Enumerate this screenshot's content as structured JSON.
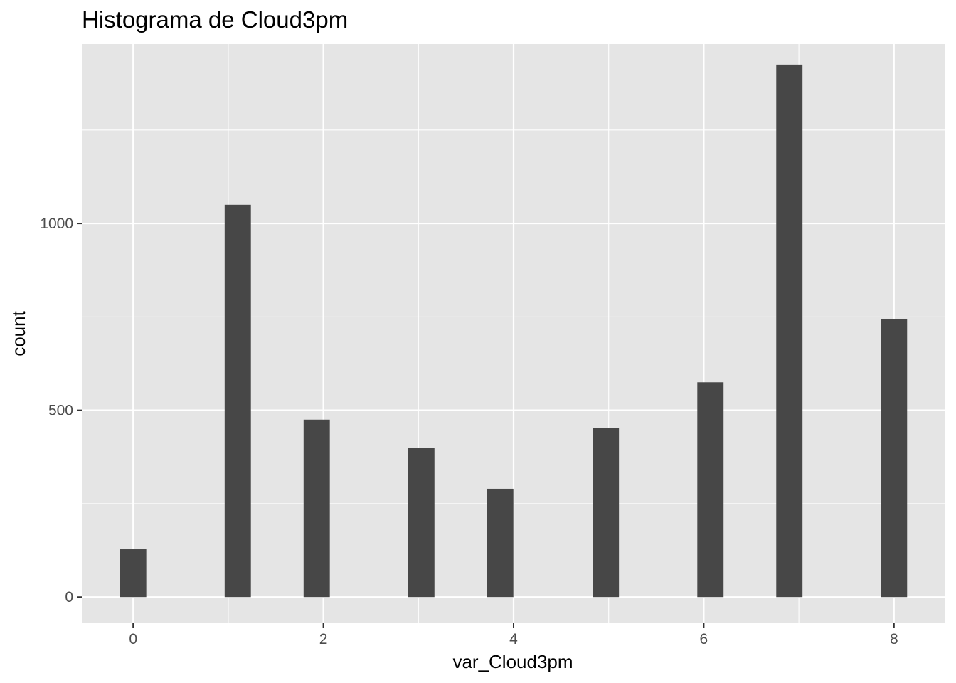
{
  "chart_data": {
    "type": "bar",
    "title": "Histograma de Cloud3pm",
    "xlabel": "var_Cloud3pm",
    "ylabel": "count",
    "x_ticks": [
      "0",
      "2",
      "4",
      "6",
      "8"
    ],
    "y_ticks": [
      "0",
      "500",
      "1000"
    ],
    "xlim": [
      -0.54,
      8.54
    ],
    "ylim": [
      -70,
      1480
    ],
    "grid": true,
    "bars": [
      {
        "x": 0.0,
        "count": 128
      },
      {
        "x": 1.1,
        "count": 1050
      },
      {
        "x": 1.93,
        "count": 475
      },
      {
        "x": 3.03,
        "count": 400
      },
      {
        "x": 3.86,
        "count": 290
      },
      {
        "x": 4.97,
        "count": 452
      },
      {
        "x": 6.07,
        "count": 575
      },
      {
        "x": 6.9,
        "count": 1425
      },
      {
        "x": 8.0,
        "count": 745
      }
    ],
    "bar_width": 0.276,
    "colors": {
      "panel": "#e5e5e5",
      "grid": "#ffffff",
      "bar": "#474747",
      "tick": "#333333"
    }
  }
}
